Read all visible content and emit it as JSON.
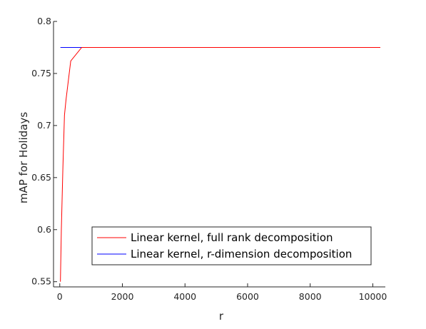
{
  "chart_data": {
    "type": "line",
    "title": "",
    "xlabel": "r",
    "ylabel": "mAP for Holidays",
    "xlim": [
      -200,
      10400
    ],
    "ylim": [
      0.545,
      0.8
    ],
    "xticks": [
      0,
      2000,
      4000,
      6000,
      8000,
      10000
    ],
    "xtick_labels": [
      "0",
      "2000",
      "4000",
      "6000",
      "8000",
      "10000"
    ],
    "yticks": [
      0.55,
      0.6,
      0.65,
      0.7,
      0.75,
      0.8
    ],
    "ytick_labels": [
      "0.55",
      "0.6",
      "0.65",
      "0.7",
      "0.75",
      "0.8"
    ],
    "grid": false,
    "legend_position": "bottom-right",
    "series": [
      {
        "name": "Linear kernel, full rank decomposition",
        "color": "#ff0000",
        "x": [
          20,
          50,
          100,
          150,
          200,
          350,
          700,
          1000,
          2000,
          4000,
          6000,
          8000,
          10240
        ],
        "y": [
          0.55,
          0.6,
          0.66,
          0.71,
          0.725,
          0.762,
          0.775,
          0.775,
          0.775,
          0.775,
          0.775,
          0.775,
          0.775
        ]
      },
      {
        "name": "Linear kernel, r-dimension decomposition",
        "color": "#0000ff",
        "x": [
          20,
          10240
        ],
        "y": [
          0.775,
          0.775
        ]
      }
    ]
  }
}
